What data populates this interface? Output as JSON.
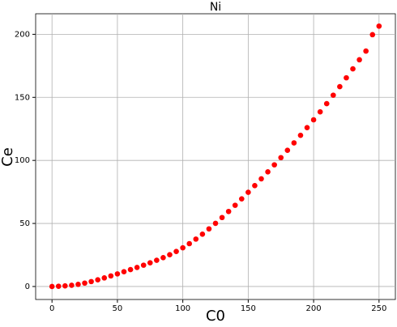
{
  "chart_data": {
    "type": "scatter",
    "title": "Ni",
    "x_label": "C0",
    "y_label": "Ce",
    "series": [
      {
        "color": "#ff0000",
        "x": [
          0,
          5,
          10,
          15,
          20,
          25,
          30,
          35,
          40,
          45,
          50,
          55,
          60,
          65,
          70,
          75,
          80,
          85,
          90,
          95,
          100,
          105,
          110,
          115,
          120,
          125,
          130,
          135,
          140,
          145,
          150,
          155,
          160,
          165,
          170,
          175,
          180,
          185,
          190,
          195,
          200,
          205,
          210,
          215,
          220,
          225,
          230,
          235,
          240,
          245,
          250
        ],
        "values": [
          0,
          0.2,
          0.5,
          1,
          1.7,
          2.7,
          3.9,
          5.3,
          6.8,
          8.4,
          10,
          11.7,
          13.4,
          15.1,
          16.9,
          18.8,
          20.8,
          22.9,
          25.2,
          27.8,
          30.7,
          34,
          37.6,
          41.5,
          45.7,
          50.1,
          54.7,
          59.5,
          64.4,
          69.5,
          74.7,
          80,
          85.4,
          90.9,
          96.5,
          102.2,
          108,
          113.9,
          119.9,
          126,
          132.2,
          138.5,
          145,
          151.7,
          158.5,
          165.5,
          172.6,
          179.8,
          186.7,
          199.7,
          206.5
        ]
      }
    ],
    "xlim": [
      -12.5,
      262.5
    ],
    "ylim": [
      -10.3,
      216.3
    ],
    "xticks": [
      0,
      50,
      100,
      150,
      200,
      250
    ],
    "yticks": [
      0,
      50,
      100,
      150,
      200
    ],
    "grid": true
  }
}
